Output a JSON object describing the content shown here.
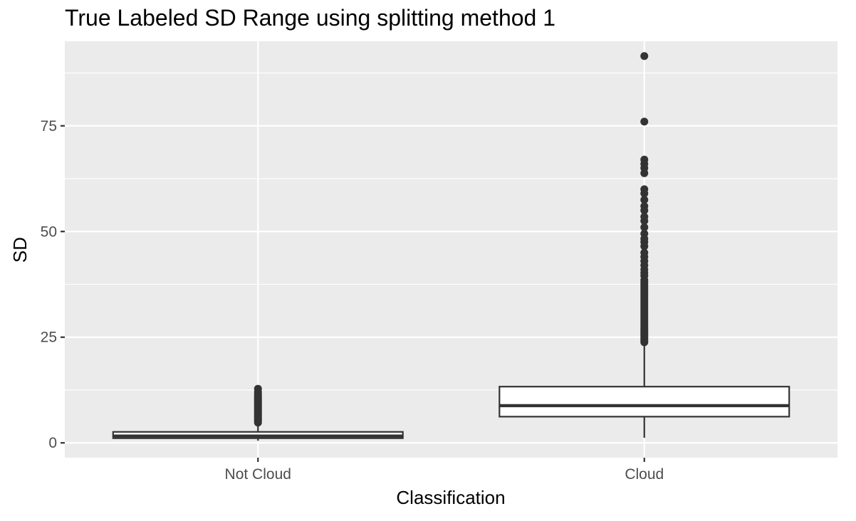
{
  "chart_data": {
    "type": "boxplot",
    "title": "True Labeled SD Range using splitting method 1",
    "xlabel": "Classification",
    "ylabel": "SD",
    "categories": [
      "Not Cloud",
      "Cloud"
    ],
    "ylim": [
      -3.5,
      95
    ],
    "yticks": [
      0,
      25,
      50,
      75
    ],
    "grid": true,
    "background_color": "#ebebeb",
    "grid_color": "#ffffff",
    "box_fill": "#ffffff",
    "line_color": "#333333",
    "boxes": [
      {
        "category": "Not Cloud",
        "lower_whisker": 0.5,
        "q1": 1.1,
        "median": 1.6,
        "q3": 2.6,
        "upper_whisker": 4.5,
        "outliers": [
          4.8,
          5.1,
          5.4,
          5.7,
          6.0,
          6.3,
          6.6,
          6.9,
          7.2,
          7.5,
          7.8,
          8.1,
          8.4,
          8.7,
          9.0,
          9.3,
          9.6,
          9.9,
          10.2,
          10.5,
          10.8,
          11.1,
          11.5,
          12.0,
          12.8
        ]
      },
      {
        "category": "Cloud",
        "lower_whisker": 1.2,
        "q1": 6.2,
        "median": 8.8,
        "q3": 13.3,
        "upper_whisker": 23.6,
        "outliers": [
          23.8,
          24.2,
          24.6,
          25.0,
          25.4,
          25.8,
          26.2,
          26.6,
          27.0,
          27.5,
          28.0,
          28.5,
          29.0,
          29.5,
          30.0,
          30.5,
          31.0,
          31.5,
          32.0,
          32.5,
          33.0,
          33.5,
          34.0,
          34.5,
          35.0,
          35.5,
          36.0,
          36.5,
          37.0,
          37.5,
          38.0,
          38.5,
          39.5,
          40.2,
          41.0,
          42.0,
          43.0,
          44.0,
          45.0,
          46.5,
          47.5,
          48.3,
          49.5,
          51.0,
          52.5,
          53.5,
          55.0,
          56.0,
          57.5,
          59.0,
          60.0,
          63.8,
          65.0,
          66.0,
          67.0,
          76.0,
          91.5
        ]
      }
    ]
  }
}
